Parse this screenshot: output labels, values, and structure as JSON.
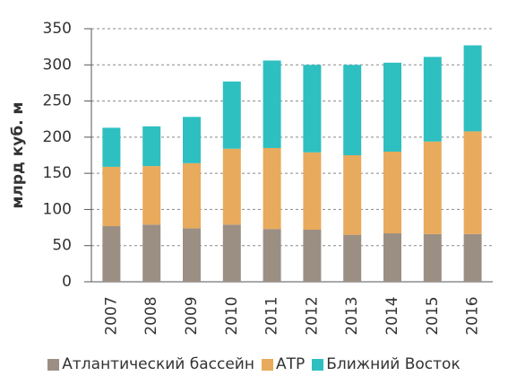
{
  "chart_data": {
    "type": "stacked_bar",
    "y_label": "млрд куб. м",
    "categories": [
      "2007",
      "2008",
      "2009",
      "2010",
      "2011",
      "2012",
      "2013",
      "2014",
      "2015",
      "2016"
    ],
    "series": [
      {
        "name": "Атлантический бассейн",
        "color": "#9b8f84",
        "values": [
          77,
          79,
          74,
          79,
          73,
          72,
          65,
          67,
          66,
          66
        ]
      },
      {
        "name": "АТР",
        "color": "#e8aa5c",
        "values": [
          82,
          81,
          90,
          105,
          112,
          107,
          110,
          113,
          128,
          142
        ]
      },
      {
        "name": "Ближний Восток",
        "color": "#2ebfc1",
        "values": [
          54,
          55,
          64,
          93,
          121,
          121,
          125,
          123,
          117,
          119
        ]
      }
    ],
    "ylim": [
      0,
      350
    ],
    "yticks": [
      0,
      50,
      100,
      150,
      200,
      250,
      300,
      350
    ],
    "grid": true
  }
}
